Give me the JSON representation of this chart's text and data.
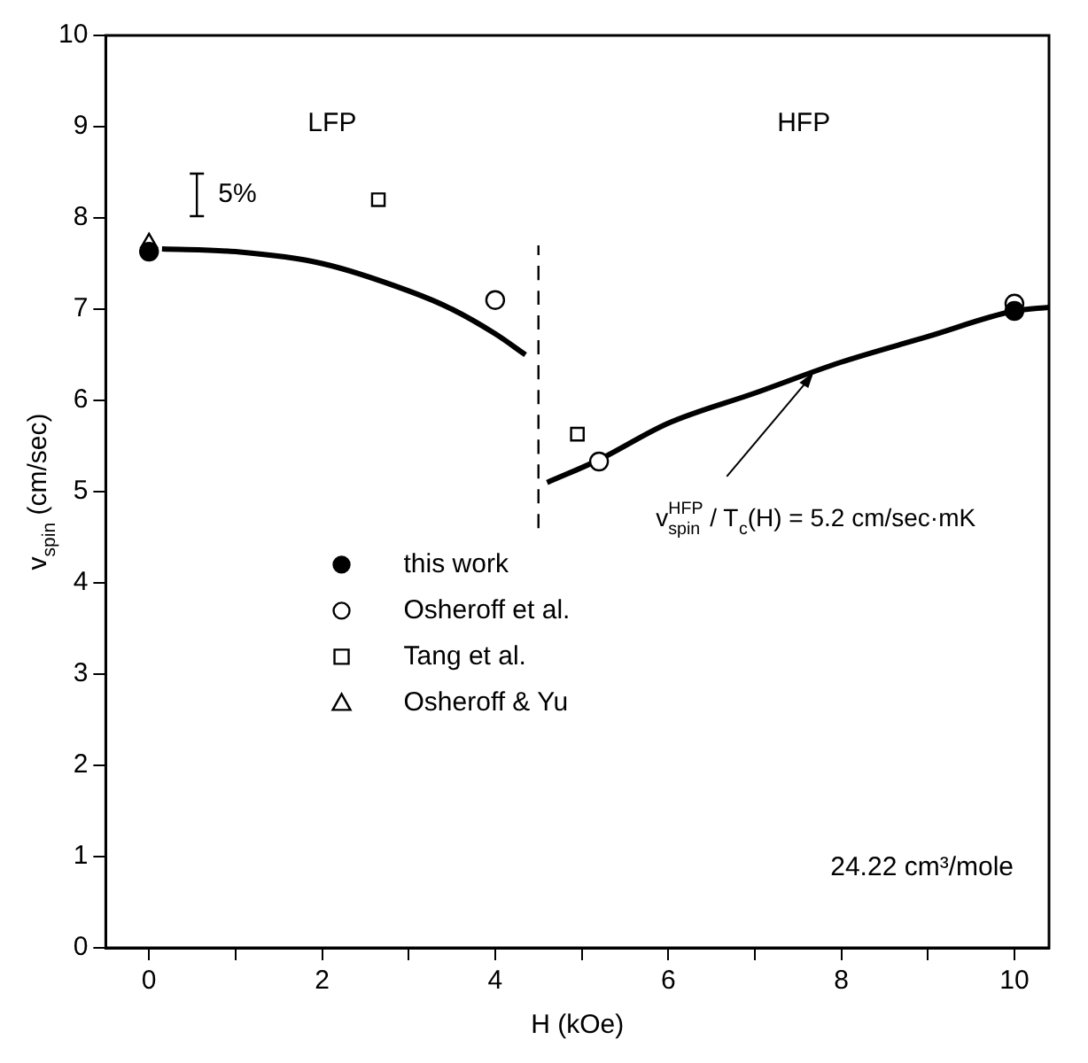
{
  "chart_data": {
    "type": "scatter",
    "xlabel": "H (kOe)",
    "ylabel": "v$_{spin}$ (cm/sec)",
    "xlim": [
      -0.5,
      10.4
    ],
    "ylim": [
      0,
      10
    ],
    "xticks": [
      0,
      {
        "value": 1,
        "label": null
      },
      2,
      {
        "value": 3,
        "label": null
      },
      4,
      {
        "value": 5,
        "label": null
      },
      6,
      {
        "value": 7,
        "label": null
      },
      8,
      {
        "value": 9,
        "label": null
      },
      10
    ],
    "yticks": [
      0,
      1,
      2,
      3,
      4,
      5,
      6,
      7,
      8,
      9,
      10
    ],
    "grid": false,
    "legend": "left",
    "series": [
      {
        "name": "this work",
        "marker": "circle",
        "color": "#000000",
        "x": [
          0,
          10
        ],
        "values": [
          7.63,
          6.98
        ]
      },
      {
        "name": "Osheroff et al.",
        "marker": "circle",
        "color": "#ffffff",
        "x": [
          4.0,
          5.2,
          10
        ],
        "values": [
          7.1,
          5.33,
          7.06
        ]
      },
      {
        "name": "Tang et al.",
        "marker": "square",
        "color": "#ffffff",
        "x": [
          2.65,
          4.95
        ],
        "values": [
          8.2,
          5.63
        ]
      },
      {
        "name": "Osheroff & Yu",
        "marker": "triangle",
        "color": "#ffffff",
        "x": [
          0
        ],
        "values": [
          7.73
        ]
      },
      {
        "type": "line",
        "marker": "none",
        "line_style": "solid",
        "color": "#000000",
        "x": [
          0.15,
          1,
          2,
          3,
          3.5,
          4,
          4.35
        ],
        "values": [
          7.66,
          7.63,
          7.5,
          7.2,
          7.0,
          6.73,
          6.5
        ]
      },
      {
        "type": "line",
        "marker": "none",
        "line_style": "solid",
        "color": "#000000",
        "x": [
          4.6,
          5.2,
          6,
          7,
          8,
          9,
          10,
          10.4
        ],
        "values": [
          5.1,
          5.35,
          5.75,
          6.08,
          6.42,
          6.7,
          6.98,
          7.02
        ]
      },
      {
        "type": "line",
        "marker": "none",
        "line_style": "dashed",
        "color": "#000000",
        "x": [
          4.5,
          4.5
        ],
        "values": [
          4.6,
          7.7
        ]
      }
    ],
    "annotations": [
      "LFP",
      "HFP",
      "5%",
      {
        "text": "v$^{HFP}$$_{spin}$ / T$_{c}$(H) = 5.2 cm/sec·mK",
        "x": 7.7,
        "y": 6.35
      },
      "24.22 cm³/mole"
    ]
  }
}
